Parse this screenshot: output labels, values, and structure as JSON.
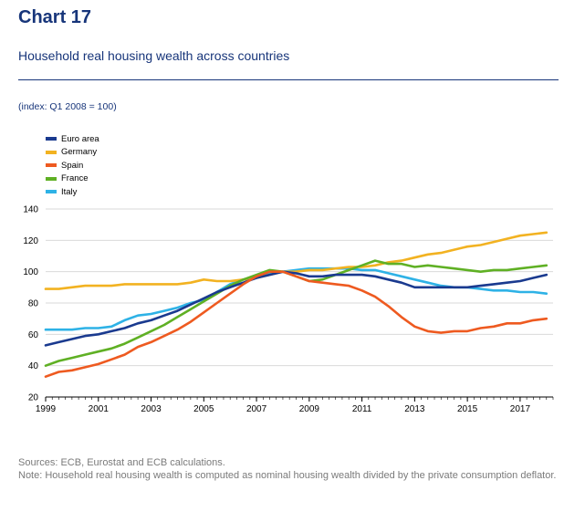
{
  "header": {
    "chart_number": "Chart 17",
    "title": "Household real housing wealth across countries",
    "unit": "(index: Q1 2008 = 100)"
  },
  "footer": {
    "sources": "Sources: ECB, Eurostat and ECB calculations.",
    "note": "Note: Household real housing wealth is computed as nominal housing wealth divided by the private consumption deflator."
  },
  "chart_data": {
    "type": "line",
    "ylim": [
      20,
      140
    ],
    "yticks": [
      "20",
      "40",
      "60",
      "80",
      "100",
      "120",
      "140"
    ],
    "xlim": [
      1999,
      2018.25
    ],
    "xticks": [
      "1999",
      "2001",
      "2003",
      "2005",
      "2007",
      "2009",
      "2011",
      "2013",
      "2015",
      "2017"
    ],
    "grid": "horizontal",
    "legend_position": "top-left",
    "series": [
      {
        "name": "Euro area",
        "color": "#1a3a8f",
        "x": [
          1999,
          1999.5,
          2000,
          2000.5,
          2001,
          2001.5,
          2002,
          2002.5,
          2003,
          2003.5,
          2004,
          2004.5,
          2005,
          2005.5,
          2006,
          2006.5,
          2007,
          2007.5,
          2008,
          2008.5,
          2009,
          2009.5,
          2010,
          2010.5,
          2011,
          2011.5,
          2012,
          2012.5,
          2013,
          2013.5,
          2014,
          2014.5,
          2015,
          2015.5,
          2016,
          2016.5,
          2017,
          2017.5,
          2018
        ],
        "y": [
          53,
          55,
          57,
          59,
          60,
          62,
          64,
          67,
          69,
          72,
          75,
          79,
          83,
          87,
          90,
          93,
          96,
          98,
          100,
          99,
          97,
          97,
          98,
          98,
          98,
          97,
          95,
          93,
          90,
          90,
          90,
          90,
          90,
          91,
          92,
          93,
          94,
          96,
          98
        ]
      },
      {
        "name": "Germany",
        "color": "#f2b221",
        "x": [
          1999,
          1999.5,
          2000,
          2000.5,
          2001,
          2001.5,
          2002,
          2002.5,
          2003,
          2003.5,
          2004,
          2004.5,
          2005,
          2005.5,
          2006,
          2006.5,
          2007,
          2007.5,
          2008,
          2008.5,
          2009,
          2009.5,
          2010,
          2010.5,
          2011,
          2011.5,
          2012,
          2012.5,
          2013,
          2013.5,
          2014,
          2014.5,
          2015,
          2015.5,
          2016,
          2016.5,
          2017,
          2017.5,
          2018
        ],
        "y": [
          89,
          89,
          90,
          91,
          91,
          91,
          92,
          92,
          92,
          92,
          92,
          93,
          95,
          94,
          94,
          95,
          96,
          98,
          100,
          100,
          101,
          101,
          102,
          103,
          103,
          104,
          106,
          107,
          109,
          111,
          112,
          114,
          116,
          117,
          119,
          121,
          123,
          124,
          125
        ]
      },
      {
        "name": "Spain",
        "color": "#ee5a20",
        "x": [
          1999,
          1999.5,
          2000,
          2000.5,
          2001,
          2001.5,
          2002,
          2002.5,
          2003,
          2003.5,
          2004,
          2004.5,
          2005,
          2005.5,
          2006,
          2006.5,
          2007,
          2007.5,
          2008,
          2008.5,
          2009,
          2009.5,
          2010,
          2010.5,
          2011,
          2011.5,
          2012,
          2012.5,
          2013,
          2013.5,
          2014,
          2014.5,
          2015,
          2015.5,
          2016,
          2016.5,
          2017,
          2017.5,
          2018
        ],
        "y": [
          33,
          36,
          37,
          39,
          41,
          44,
          47,
          52,
          55,
          59,
          63,
          68,
          74,
          80,
          86,
          92,
          97,
          100,
          100,
          97,
          94,
          93,
          92,
          91,
          88,
          84,
          78,
          71,
          65,
          62,
          61,
          62,
          62,
          64,
          65,
          67,
          67,
          69,
          70
        ]
      },
      {
        "name": "France",
        "color": "#5fb024",
        "x": [
          1999,
          1999.5,
          2000,
          2000.5,
          2001,
          2001.5,
          2002,
          2002.5,
          2003,
          2003.5,
          2004,
          2004.5,
          2005,
          2005.5,
          2006,
          2006.5,
          2007,
          2007.5,
          2008,
          2008.5,
          2009,
          2009.5,
          2010,
          2010.5,
          2011,
          2011.5,
          2012,
          2012.5,
          2013,
          2013.5,
          2014,
          2014.5,
          2015,
          2015.5,
          2016,
          2016.5,
          2017,
          2017.5,
          2018
        ],
        "y": [
          40,
          43,
          45,
          47,
          49,
          51,
          54,
          58,
          62,
          66,
          71,
          76,
          81,
          86,
          91,
          95,
          98,
          101,
          100,
          97,
          94,
          95,
          98,
          101,
          104,
          107,
          105,
          105,
          103,
          104,
          103,
          102,
          101,
          100,
          101,
          101,
          102,
          103,
          104
        ]
      },
      {
        "name": "Italy",
        "color": "#2eb2e6",
        "x": [
          1999,
          1999.5,
          2000,
          2000.5,
          2001,
          2001.5,
          2002,
          2002.5,
          2003,
          2003.5,
          2004,
          2004.5,
          2005,
          2005.5,
          2006,
          2006.5,
          2007,
          2007.5,
          2008,
          2008.5,
          2009,
          2009.5,
          2010,
          2010.5,
          2011,
          2011.5,
          2012,
          2012.5,
          2013,
          2013.5,
          2014,
          2014.5,
          2015,
          2015.5,
          2016,
          2016.5,
          2017,
          2017.5,
          2018
        ],
        "y": [
          63,
          63,
          63,
          64,
          64,
          65,
          69,
          72,
          73,
          75,
          77,
          80,
          82,
          87,
          92,
          95,
          97,
          99,
          100,
          101,
          102,
          102,
          102,
          102,
          101,
          101,
          99,
          97,
          95,
          93,
          91,
          90,
          90,
          89,
          88,
          88,
          87,
          87,
          86
        ]
      }
    ]
  }
}
